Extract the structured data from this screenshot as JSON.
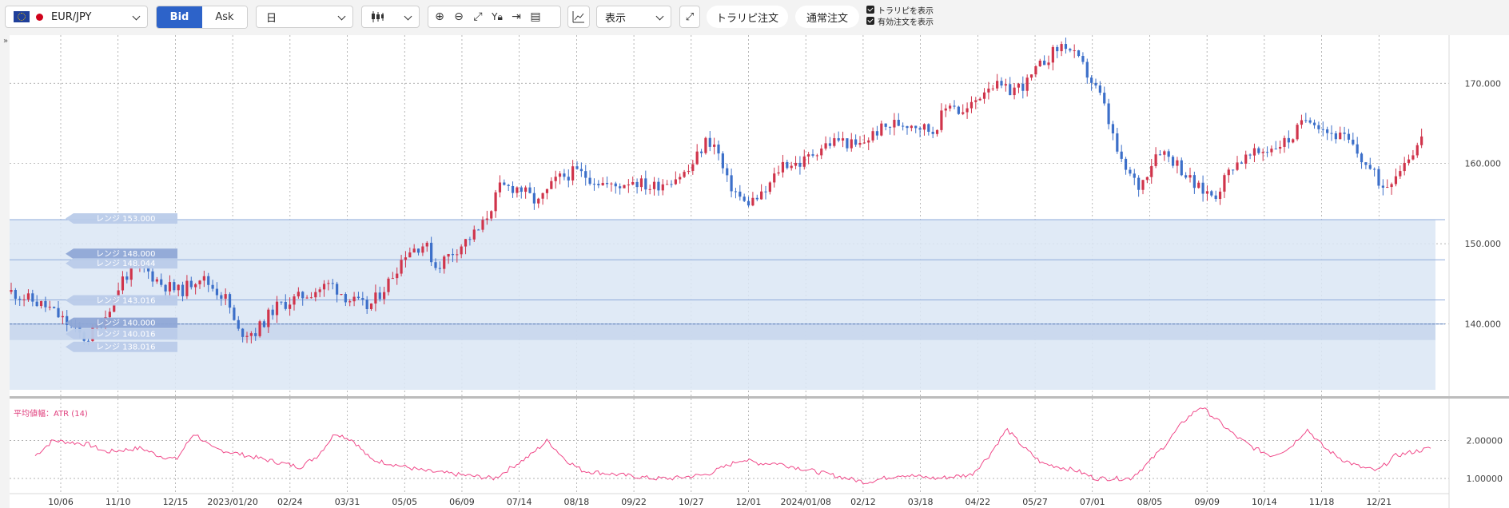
{
  "toolbar": {
    "symbol": "EUR/JPY",
    "bid_label": "Bid",
    "ask_label": "Ask",
    "period": "日",
    "display_label": "表示",
    "torarepi_order": "トラリピ注文",
    "normal_order": "通常注文",
    "show_torarepi": "トラリピを表示",
    "show_active_orders": "有効注文を表示",
    "icons": [
      "candlestick-icon",
      "zoom-in-icon",
      "zoom-out-icon",
      "fit-icon",
      "y-lock-icon",
      "scroll-end-icon",
      "report-icon",
      "add-indicator-icon",
      "expand-icon"
    ]
  },
  "collapse_glyph": "»",
  "main_chart": {
    "y_ticks": [
      "170.000",
      "160.000",
      "150.000",
      "140.000"
    ],
    "range_labels": [
      {
        "label": "レンジ 153.000",
        "style": "faint"
      },
      {
        "label": "レンジ 148.000",
        "style": "strong"
      },
      {
        "label": "レンジ 148.044",
        "style": "faint"
      },
      {
        "label": "レンジ 143.016",
        "style": "faint"
      },
      {
        "label": "レンジ 140.000",
        "style": "strong"
      },
      {
        "label": "レンジ 140.016",
        "style": "faint"
      },
      {
        "label": "レンジ 138.016",
        "style": "faint"
      }
    ],
    "colors": {
      "up": "#d0344b",
      "down": "#3c6fc9",
      "band": "#dbe6f5",
      "band_line": "#8ea9da"
    }
  },
  "atr_panel": {
    "title": "平均値幅：ATR (14)",
    "y_ticks": [
      "2.00000",
      "1.00000"
    ],
    "line_color": "#f04a8a"
  },
  "x_axis_labels": [
    "10/06",
    "11/10",
    "12/15",
    "2023/01/20",
    "02/24",
    "03/31",
    "05/05",
    "06/09",
    "07/14",
    "08/18",
    "09/22",
    "10/27",
    "12/01",
    "2024/01/08",
    "02/12",
    "03/18",
    "04/22",
    "05/27",
    "07/01",
    "08/05",
    "09/09",
    "10/14",
    "11/18",
    "12/21"
  ],
  "chart_data": {
    "type": "candlestick",
    "title": "EUR/JPY",
    "timeframe": "日",
    "ylim": [
      131,
      176
    ],
    "close_path": [
      [
        0,
        144
      ],
      [
        2,
        142
      ],
      [
        4,
        138
      ],
      [
        5,
        141
      ],
      [
        6,
        146
      ],
      [
        7,
        147
      ],
      [
        8,
        145
      ],
      [
        9,
        144
      ],
      [
        10,
        146
      ],
      [
        11,
        144
      ],
      [
        11.5,
        143
      ],
      [
        12,
        139
      ],
      [
        13,
        139
      ],
      [
        14,
        142
      ],
      [
        15,
        143
      ],
      [
        16,
        144
      ],
      [
        17,
        145
      ],
      [
        18,
        143
      ],
      [
        19,
        142
      ],
      [
        20,
        145
      ],
      [
        21,
        149
      ],
      [
        22,
        150
      ],
      [
        22.6,
        147
      ],
      [
        23,
        148
      ],
      [
        24,
        150
      ],
      [
        25,
        152
      ],
      [
        26,
        157
      ],
      [
        27,
        157
      ],
      [
        28,
        155
      ],
      [
        29,
        158
      ],
      [
        30,
        159
      ],
      [
        31,
        158
      ],
      [
        32,
        157
      ],
      [
        33,
        158
      ],
      [
        34,
        157
      ],
      [
        35,
        158
      ],
      [
        36,
        159
      ],
      [
        37,
        163
      ],
      [
        37.5,
        162
      ],
      [
        38,
        158
      ],
      [
        39,
        155
      ],
      [
        40,
        156
      ],
      [
        41,
        160
      ],
      [
        42,
        160
      ],
      [
        43,
        162
      ],
      [
        44,
        163
      ],
      [
        45,
        162
      ],
      [
        46,
        164
      ],
      [
        47,
        165
      ],
      [
        48,
        165
      ],
      [
        49,
        164
      ],
      [
        50,
        168
      ],
      [
        50.5,
        166
      ],
      [
        51,
        167
      ],
      [
        52,
        170
      ],
      [
        53,
        169
      ],
      [
        54,
        170
      ],
      [
        55,
        173
      ],
      [
        56,
        175
      ],
      [
        57,
        172
      ],
      [
        58,
        168
      ],
      [
        59,
        160
      ],
      [
        60,
        157
      ],
      [
        61,
        162
      ],
      [
        62,
        160
      ],
      [
        63,
        157
      ],
      [
        64,
        156
      ],
      [
        65,
        160
      ],
      [
        66,
        161
      ],
      [
        67,
        162
      ],
      [
        68,
        163
      ],
      [
        69,
        166
      ],
      [
        70,
        164
      ],
      [
        71,
        163
      ],
      [
        72,
        160
      ],
      [
        73,
        157
      ],
      [
        74,
        160
      ],
      [
        75,
        163
      ]
    ],
    "atr_path": [
      [
        0,
        1.6
      ],
      [
        1,
        2.0
      ],
      [
        3,
        1.9
      ],
      [
        4,
        1.7
      ],
      [
        6,
        1.8
      ],
      [
        7,
        1.6
      ],
      [
        8,
        1.5
      ],
      [
        9,
        2.2
      ],
      [
        10,
        1.8
      ],
      [
        12,
        1.6
      ],
      [
        13,
        1.5
      ],
      [
        15,
        1.3
      ],
      [
        16,
        1.6
      ],
      [
        17,
        2.2
      ],
      [
        18,
        2.0
      ],
      [
        19,
        1.5
      ],
      [
        21,
        1.3
      ],
      [
        22,
        1.2
      ],
      [
        24,
        1.1
      ],
      [
        26,
        1.0
      ],
      [
        27,
        1.3
      ],
      [
        28,
        1.6
      ],
      [
        29,
        2.0
      ],
      [
        30,
        1.5
      ],
      [
        31,
        1.2
      ],
      [
        33,
        1.1
      ],
      [
        35,
        1.0
      ],
      [
        36,
        1.0
      ],
      [
        38,
        1.1
      ],
      [
        39,
        1.3
      ],
      [
        40,
        1.5
      ],
      [
        41,
        1.4
      ],
      [
        42,
        1.4
      ],
      [
        44,
        1.2
      ],
      [
        46,
        1.0
      ],
      [
        47,
        0.9
      ],
      [
        49,
        1.1
      ],
      [
        51,
        1.0
      ],
      [
        53,
        1.1
      ],
      [
        54,
        1.6
      ],
      [
        55,
        2.3
      ],
      [
        56,
        1.8
      ],
      [
        57,
        1.4
      ],
      [
        59,
        1.2
      ],
      [
        60,
        1.0
      ],
      [
        62,
        1.0
      ],
      [
        63,
        1.4
      ],
      [
        64,
        1.9
      ],
      [
        65,
        2.5
      ],
      [
        66,
        2.9
      ],
      [
        67,
        2.5
      ],
      [
        68,
        2.1
      ],
      [
        69,
        1.8
      ],
      [
        70,
        1.6
      ],
      [
        71,
        1.8
      ],
      [
        72,
        2.3
      ],
      [
        73,
        1.8
      ],
      [
        74,
        1.5
      ],
      [
        75,
        1.3
      ],
      [
        76,
        1.2
      ],
      [
        77,
        1.6
      ],
      [
        78,
        1.7
      ],
      [
        79,
        1.8
      ]
    ],
    "atr_ylim": [
      0.6,
      3.0
    ],
    "range_levels": [
      153,
      148,
      148.044,
      143.016,
      140,
      140.016,
      138.016
    ],
    "x_labels": [
      "10/06",
      "11/10",
      "12/15",
      "2023/01/20",
      "02/24",
      "03/31",
      "05/05",
      "06/09",
      "07/14",
      "08/18",
      "09/22",
      "10/27",
      "12/01",
      "2024/01/08",
      "02/12",
      "03/18",
      "04/22",
      "05/27",
      "07/01",
      "08/05",
      "09/09",
      "10/14",
      "11/18",
      "12/21"
    ],
    "grid": true
  }
}
